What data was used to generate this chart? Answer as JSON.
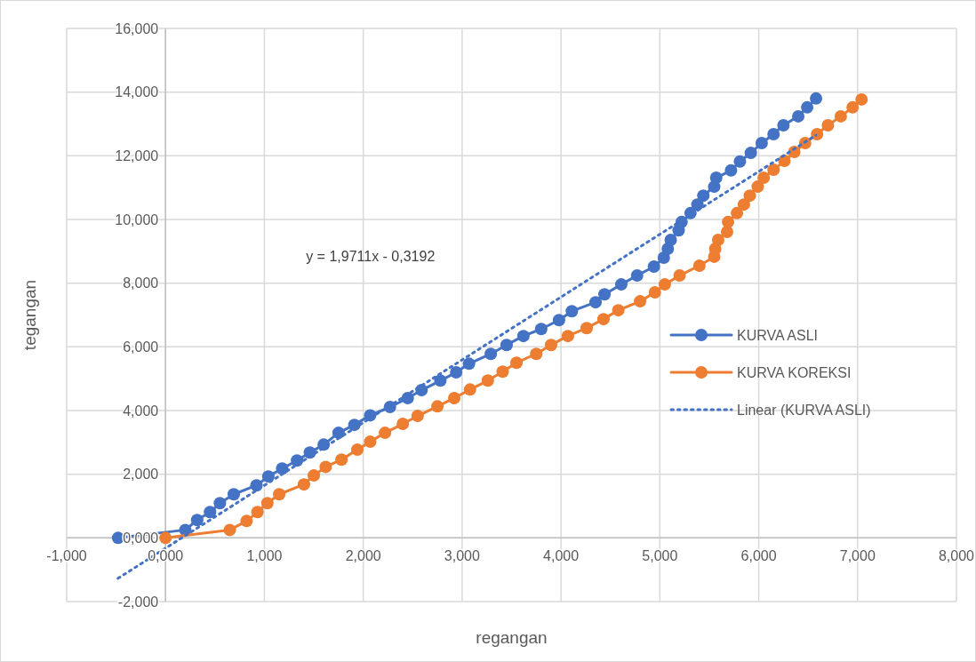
{
  "chart_data": {
    "type": "line",
    "xlabel": "regangan",
    "ylabel": "tegangan",
    "xlim": [
      -1,
      8
    ],
    "ylim": [
      -2,
      16
    ],
    "xticks": [
      {
        "value": -1,
        "label": "-1,000"
      },
      {
        "value": 0,
        "label": "0,000"
      },
      {
        "value": 1,
        "label": "1,000"
      },
      {
        "value": 2,
        "label": "2,000"
      },
      {
        "value": 3,
        "label": "3,000"
      },
      {
        "value": 4,
        "label": "4,000"
      },
      {
        "value": 5,
        "label": "5,000"
      },
      {
        "value": 6,
        "label": "6,000"
      },
      {
        "value": 7,
        "label": "7,000"
      },
      {
        "value": 8,
        "label": "8,000"
      }
    ],
    "yticks": [
      {
        "value": -2,
        "label": "-2,000"
      },
      {
        "value": 0,
        "label": "0,000"
      },
      {
        "value": 2,
        "label": "2,000"
      },
      {
        "value": 4,
        "label": "4,000"
      },
      {
        "value": 6,
        "label": "6,000"
      },
      {
        "value": 8,
        "label": "8,000"
      },
      {
        "value": 10,
        "label": "10,000"
      },
      {
        "value": 12,
        "label": "12,000"
      },
      {
        "value": 14,
        "label": "14,000"
      },
      {
        "value": 16,
        "label": "16,000"
      }
    ],
    "grid": true,
    "legend": "right",
    "marker": "circle",
    "annotations": [
      "y = 1,9711x - 0,3192"
    ],
    "series": [
      {
        "name": "KURVA ASLI",
        "color": "#4472c4",
        "line_style": "solid",
        "x": [
          -0.48,
          0.2,
          0.32,
          0.45,
          0.55,
          0.69,
          0.92,
          1.04,
          1.18,
          1.33,
          1.46,
          1.6,
          1.75,
          1.91,
          2.07,
          2.27,
          2.45,
          2.59,
          2.78,
          2.94,
          3.07,
          3.29,
          3.45,
          3.62,
          3.8,
          3.98,
          4.11,
          4.35,
          4.44,
          4.61,
          4.77,
          4.94,
          5.04,
          5.08,
          5.11,
          5.19,
          5.22,
          5.31,
          5.38,
          5.44,
          5.55,
          5.57,
          5.72,
          5.81,
          5.92,
          6.03,
          6.15,
          6.25,
          6.4,
          6.49,
          6.58
        ],
        "values": [
          0,
          0.25,
          0.56,
          0.81,
          1.09,
          1.37,
          1.65,
          1.93,
          2.18,
          2.43,
          2.68,
          2.93,
          3.3,
          3.55,
          3.85,
          4.11,
          4.39,
          4.64,
          4.94,
          5.2,
          5.47,
          5.78,
          6.06,
          6.34,
          6.56,
          6.84,
          7.12,
          7.4,
          7.65,
          7.96,
          8.24,
          8.52,
          8.8,
          9.08,
          9.36,
          9.66,
          9.92,
          10.2,
          10.47,
          10.75,
          11.03,
          11.31,
          11.54,
          11.82,
          12.09,
          12.4,
          12.68,
          12.96,
          13.24,
          13.52,
          13.8
        ]
      },
      {
        "name": "KURVA KOREKSI",
        "color": "#ed7d31",
        "line_style": "solid",
        "x": [
          0,
          0.65,
          0.82,
          0.93,
          1.03,
          1.15,
          1.4,
          1.5,
          1.62,
          1.78,
          1.94,
          2.07,
          2.22,
          2.4,
          2.55,
          2.75,
          2.92,
          3.08,
          3.26,
          3.41,
          3.55,
          3.75,
          3.9,
          4.07,
          4.26,
          4.43,
          4.58,
          4.8,
          4.95,
          5.05,
          5.2,
          5.4,
          5.55,
          5.56,
          5.59,
          5.68,
          5.69,
          5.78,
          5.85,
          5.91,
          5.99,
          6.05,
          6.15,
          6.26,
          6.36,
          6.47,
          6.59,
          6.7,
          6.83,
          6.95,
          7.04
        ],
        "values": [
          0,
          0.25,
          0.53,
          0.81,
          1.09,
          1.37,
          1.68,
          1.96,
          2.23,
          2.46,
          2.77,
          3.02,
          3.3,
          3.58,
          3.83,
          4.13,
          4.39,
          4.66,
          4.94,
          5.22,
          5.5,
          5.78,
          6.06,
          6.34,
          6.59,
          6.87,
          7.15,
          7.43,
          7.71,
          7.96,
          8.24,
          8.55,
          8.83,
          9.08,
          9.36,
          9.61,
          9.92,
          10.2,
          10.47,
          10.75,
          11.03,
          11.31,
          11.56,
          11.84,
          12.12,
          12.4,
          12.68,
          12.96,
          13.24,
          13.52,
          13.77
        ]
      },
      {
        "name": "Linear (KURVA ASLI)",
        "color": "#4472c4",
        "marker": "none",
        "line_style": "dotted",
        "x": [
          -0.48,
          6.58
        ],
        "values": [
          -1.27,
          12.65
        ]
      }
    ]
  }
}
